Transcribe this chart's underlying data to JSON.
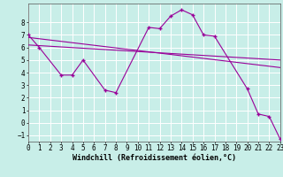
{
  "xlabel": "Windchill (Refroidissement éolien,°C)",
  "bg_color": "#c8eee8",
  "grid_color": "#ffffff",
  "line_color": "#990099",
  "line1_x": [
    0,
    1,
    3,
    4,
    5,
    7,
    8,
    11,
    12,
    13,
    14,
    15,
    16,
    17,
    20,
    21,
    22,
    23
  ],
  "line1_y": [
    7.0,
    6.0,
    3.8,
    3.8,
    5.0,
    2.6,
    2.4,
    7.6,
    7.5,
    8.5,
    9.0,
    8.6,
    7.0,
    6.9,
    2.7,
    0.7,
    0.5,
    -1.3
  ],
  "line2_x": [
    0,
    23
  ],
  "line2_y": [
    6.8,
    4.4
  ],
  "line3_x": [
    0,
    23
  ],
  "line3_y": [
    6.2,
    5.0
  ],
  "xlim": [
    0,
    23
  ],
  "ylim": [
    -1.5,
    9.5
  ],
  "xticks": [
    0,
    1,
    2,
    3,
    4,
    5,
    6,
    7,
    8,
    9,
    10,
    11,
    12,
    13,
    14,
    15,
    16,
    17,
    18,
    19,
    20,
    21,
    22,
    23
  ],
  "yticks": [
    -1,
    0,
    1,
    2,
    3,
    4,
    5,
    6,
    7,
    8
  ],
  "tick_fontsize": 5.5,
  "xlabel_fontsize": 6.0,
  "marker": "+"
}
